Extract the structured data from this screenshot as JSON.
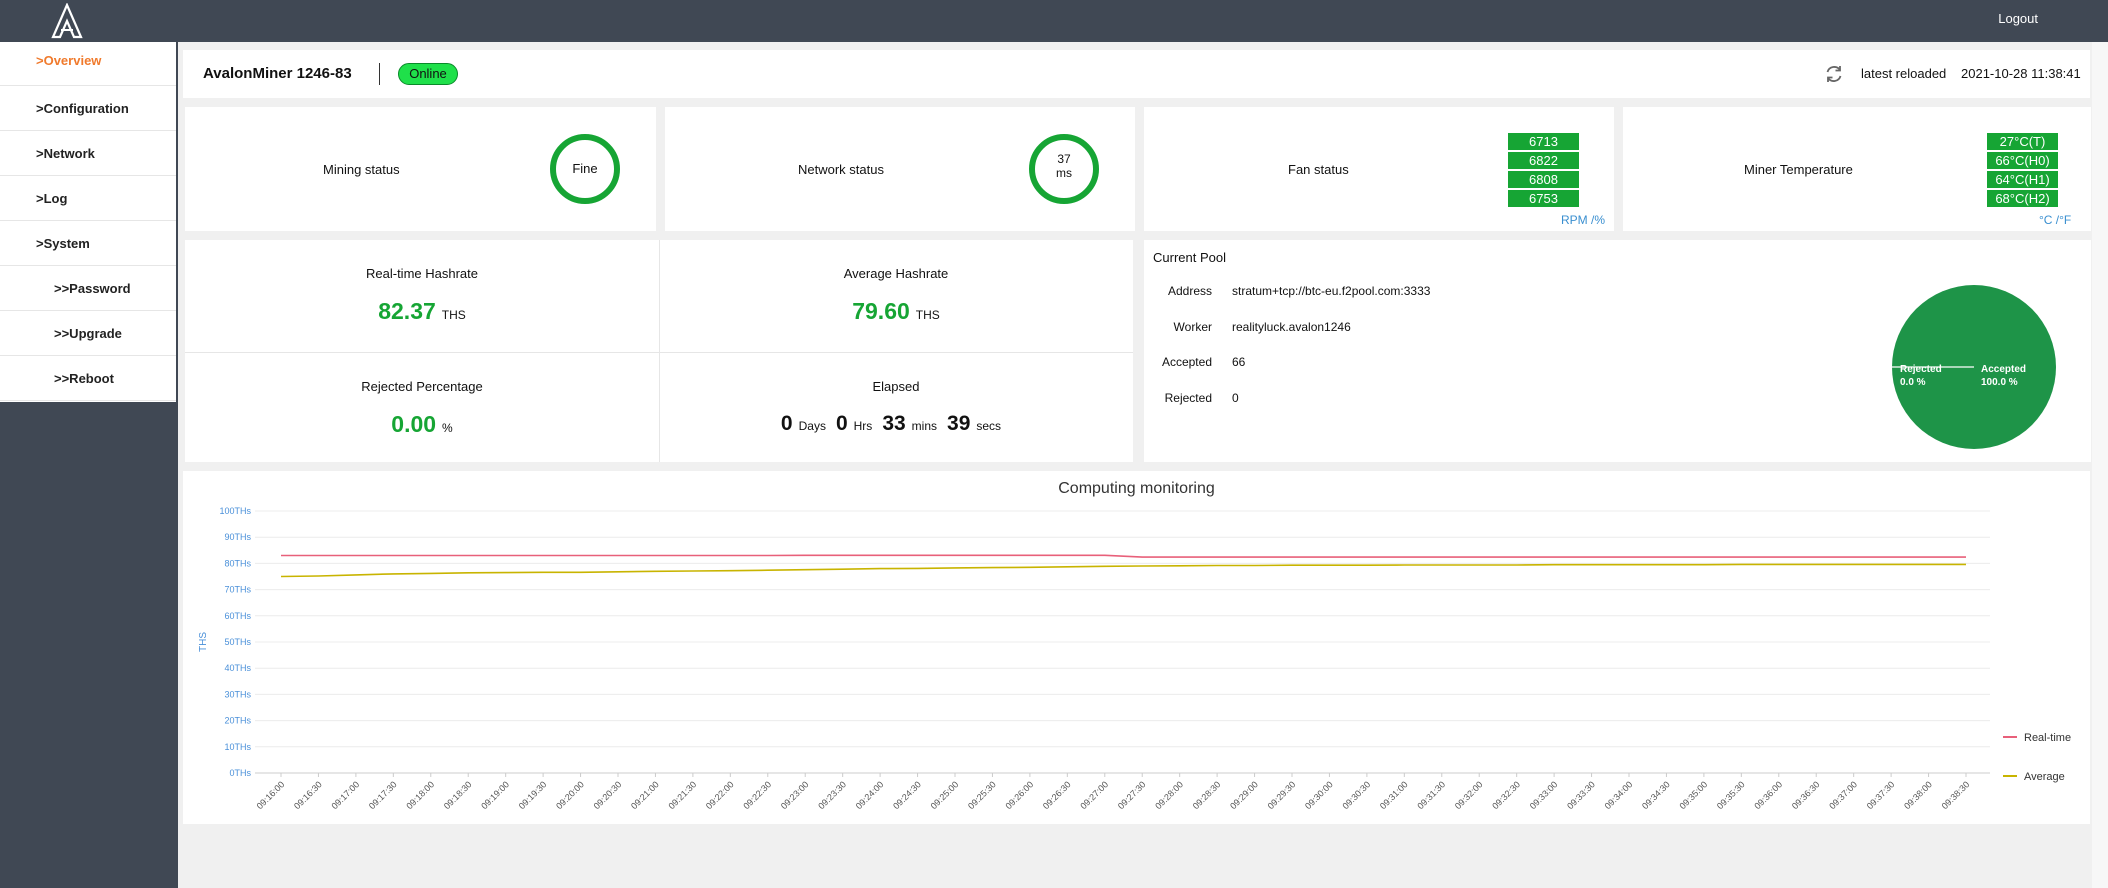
{
  "topbar": {
    "logout": "Logout"
  },
  "sidebar": {
    "items": [
      {
        "label": ">Overview"
      },
      {
        "label": ">Configuration"
      },
      {
        "label": ">Network"
      },
      {
        "label": ">Log"
      },
      {
        "label": ">System"
      },
      {
        "label": ">>Password"
      },
      {
        "label": ">>Upgrade"
      },
      {
        "label": ">>Reboot"
      }
    ]
  },
  "header": {
    "miner_name": "AvalonMiner 1246-83",
    "status": "Online",
    "reload_label": "latest reloaded",
    "reload_time": "2021-10-28 11:38:41"
  },
  "status_cards": {
    "mining": {
      "label": "Mining status",
      "value": "Fine"
    },
    "network": {
      "label": "Network status",
      "value": "37",
      "unit": "ms"
    },
    "fan": {
      "label": "Fan status",
      "values": [
        "6713",
        "6822",
        "6808",
        "6753"
      ],
      "unit_link": "RPM /%"
    },
    "temp": {
      "label": "Miner Temperature",
      "values": [
        "27°C(T)",
        "66°C(H0)",
        "64°C(H1)",
        "68°C(H2)"
      ],
      "unit_link": "°C /°F"
    }
  },
  "hashrate": {
    "realtime": {
      "label": "Real-time Hashrate",
      "value": "82.37",
      "unit": "THS"
    },
    "average": {
      "label": "Average Hashrate",
      "value": "79.60",
      "unit": "THS"
    },
    "rejected": {
      "label": "Rejected Percentage",
      "value": "0.00",
      "unit": "%"
    },
    "elapsed": {
      "label": "Elapsed",
      "days": "0",
      "days_unit": "Days",
      "hrs": "0",
      "hrs_unit": "Hrs",
      "mins": "33",
      "mins_unit": "mins",
      "secs": "39",
      "secs_unit": "secs"
    }
  },
  "pool": {
    "title": "Current Pool",
    "address_label": "Address",
    "address": "stratum+tcp://btc-eu.f2pool.com:3333",
    "worker_label": "Worker",
    "worker": "realityluck.avalon1246",
    "accepted_label": "Accepted",
    "accepted": "66",
    "rejected_label": "Rejected",
    "rejected": "0",
    "pie": {
      "rejected_label": "Rejected",
      "rejected_pct": "0.0 %",
      "accepted_label": "Accepted",
      "accepted_pct": "100.0 %",
      "accepted_share": 100.0,
      "rejected_share": 0.0,
      "color": "#1e9448"
    }
  },
  "chart_data": {
    "type": "line",
    "title": "Computing monitoring",
    "ylabel": "THS",
    "ylim": [
      0,
      100
    ],
    "y_ticks": [
      "0THs",
      "10THs",
      "20THs",
      "30THs",
      "40THs",
      "50THs",
      "60THs",
      "70THs",
      "80THs",
      "90THs",
      "100THs"
    ],
    "x": [
      "09:16:00",
      "09:16:30",
      "09:17:00",
      "09:17:30",
      "09:18:00",
      "09:18:30",
      "09:19:00",
      "09:19:30",
      "09:20:00",
      "09:20:30",
      "09:21:00",
      "09:21:30",
      "09:22:00",
      "09:22:30",
      "09:23:00",
      "09:23:30",
      "09:24:00",
      "09:24:30",
      "09:25:00",
      "09:25:30",
      "09:26:00",
      "09:26:30",
      "09:27:00",
      "09:27:30",
      "09:28:00",
      "09:28:30",
      "09:29:00",
      "09:29:30",
      "09:30:00",
      "09:30:30",
      "09:31:00",
      "09:31:30",
      "09:32:00",
      "09:32:30",
      "09:33:00",
      "09:33:30",
      "09:34:00",
      "09:34:30",
      "09:35:00",
      "09:35:30",
      "09:36:00",
      "09:36:30",
      "09:37:00",
      "09:37:30",
      "09:38:00",
      "09:38:30"
    ],
    "series": [
      {
        "name": "Real-time",
        "color": "#e8607a",
        "values": [
          83.0,
          83.0,
          83.0,
          83.0,
          83.0,
          83.0,
          83.0,
          83.0,
          83.0,
          83.0,
          83.0,
          83.0,
          83.0,
          83.0,
          83.1,
          83.1,
          83.1,
          83.1,
          83.1,
          83.1,
          83.1,
          83.1,
          83.1,
          82.4,
          82.4,
          82.4,
          82.4,
          82.4,
          82.4,
          82.4,
          82.4,
          82.4,
          82.4,
          82.4,
          82.4,
          82.4,
          82.4,
          82.4,
          82.4,
          82.4,
          82.4,
          82.4,
          82.4,
          82.4,
          82.4,
          82.4
        ]
      },
      {
        "name": "Average",
        "color": "#c8b400",
        "values": [
          75.0,
          75.2,
          75.6,
          76.0,
          76.2,
          76.4,
          76.5,
          76.6,
          76.6,
          76.8,
          77.0,
          77.1,
          77.2,
          77.4,
          77.6,
          77.8,
          78.0,
          78.1,
          78.3,
          78.4,
          78.5,
          78.7,
          78.9,
          79.0,
          79.1,
          79.2,
          79.2,
          79.3,
          79.3,
          79.3,
          79.4,
          79.4,
          79.4,
          79.4,
          79.5,
          79.5,
          79.5,
          79.5,
          79.5,
          79.6,
          79.6,
          79.6,
          79.6,
          79.6,
          79.6,
          79.6
        ]
      }
    ],
    "legend_position": "right"
  }
}
